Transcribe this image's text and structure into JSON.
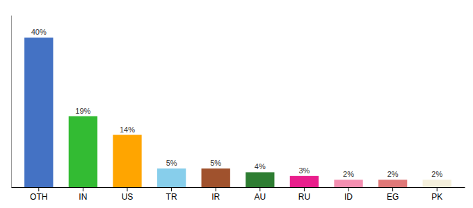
{
  "chart_data": {
    "type": "bar",
    "categories": [
      "OTH",
      "IN",
      "US",
      "TR",
      "IR",
      "AU",
      "RU",
      "ID",
      "EG",
      "PK"
    ],
    "values": [
      40,
      19,
      14,
      5,
      5,
      4,
      3,
      2,
      2,
      2
    ],
    "value_labels": [
      "40%",
      "19%",
      "14%",
      "5%",
      "5%",
      "4%",
      "3%",
      "2%",
      "2%",
      "2%"
    ],
    "colors": [
      "#4472C4",
      "#33BB33",
      "#FFA500",
      "#87CEEB",
      "#A0522D",
      "#2E7D32",
      "#E91E8C",
      "#F48FB1",
      "#E07878",
      "#F5F0DC"
    ],
    "ylim": [
      0,
      46
    ],
    "grid": false,
    "data_labels": true,
    "tick_labels": "x"
  }
}
